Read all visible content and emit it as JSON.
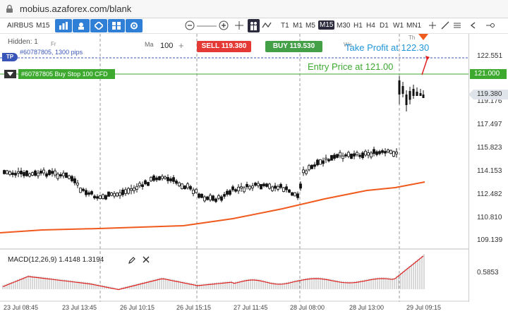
{
  "browser": {
    "url": "mobius.azaforex.com/blank"
  },
  "toolbar": {
    "symbol": "AIRBUS",
    "period": "M15",
    "timeframes": [
      "T1",
      "M1",
      "M5",
      "M15",
      "M30",
      "H1",
      "H4",
      "D1",
      "W1",
      "MN1"
    ],
    "active_timeframe": "M15"
  },
  "order_panel": {
    "hidden_label": "Hidden: 1",
    "fri_label": "Fr",
    "ma_label": "Ma",
    "volume": "100",
    "plus": "+",
    "sell_label": "SELL ",
    "sell_price": "119.380",
    "buy_label": "BUY ",
    "buy_price": "119.530",
    "tp_badge": "TP",
    "tp_order_text": "#60787805, 1300 pips",
    "buy_stop_text": "#60787805 Buy Stop 100 CFD"
  },
  "annotations": {
    "take_profit": "Take Profit at 122.30",
    "entry_price": "Entry Price at 121.00",
    "we_label": "We",
    "th_label": "Th"
  },
  "price_axis": {
    "labels": [
      "122.551",
      "119.176",
      "117.497",
      "115.823",
      "114.153",
      "112.482",
      "110.810",
      "109.139"
    ],
    "entry_tag": "121.000",
    "current_tag": "119.380"
  },
  "macd": {
    "title": "MACD(12,26,9) 1.4148 1.3194",
    "axis_label": "0.5853"
  },
  "time_axis": [
    "23 Jul 08:45",
    "23 Jul 13:45",
    "26 Jul 10:15",
    "26 Jul 15:15",
    "27 Jul 11:45",
    "28 Jul 08:00",
    "28 Jul 13:00",
    "29 Jul 09:15"
  ],
  "colors": {
    "sell": "#e53935",
    "buy": "#43a047",
    "entry_line": "#3daa2f",
    "tp_line": "#3a55b8",
    "take_profit_text": "#2196d8",
    "ema": "#f05a1e",
    "accent": "#2f7fd6"
  }
}
